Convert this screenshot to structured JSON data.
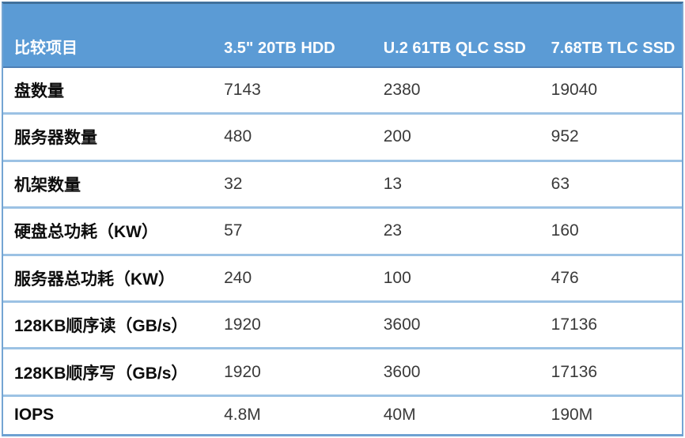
{
  "chart_data": {
    "type": "table",
    "title": "",
    "columns": [
      "比较项目",
      "3.5\" 20TB HDD",
      "U.2 61TB QLC SSD",
      "7.68TB TLC SSD"
    ],
    "rows": [
      {
        "label": "盘数量",
        "values": [
          "7143",
          "2380",
          "19040"
        ]
      },
      {
        "label": "服务器数量",
        "values": [
          "480",
          "200",
          "952"
        ]
      },
      {
        "label": "机架数量",
        "values": [
          "32",
          "13",
          "63"
        ]
      },
      {
        "label": "硬盘总功耗（KW）",
        "values": [
          "57",
          "23",
          "160"
        ]
      },
      {
        "label": "服务器总功耗（KW）",
        "values": [
          "240",
          "100",
          "476"
        ]
      },
      {
        "label": "128KB顺序读（GB/s）",
        "values": [
          "1920",
          "3600",
          "17136"
        ]
      },
      {
        "label": "128KB顺序写（GB/s）",
        "values": [
          "1920",
          "3600",
          "17136"
        ]
      },
      {
        "label": "IOPS",
        "values": [
          "4.8M",
          "40M",
          "190M"
        ]
      }
    ],
    "layout": {
      "grid": "horizontal-separators-only",
      "legend": "none"
    }
  },
  "colors": {
    "header_bg": "#5b9bd5",
    "header_text": "#ffffff",
    "separator_light": "#9cc2e4",
    "outer_border_top": "#41719c",
    "outer_border_side": "#74a5d3",
    "label_text": "#0d0d0d",
    "value_text": "#3a3a3a"
  }
}
